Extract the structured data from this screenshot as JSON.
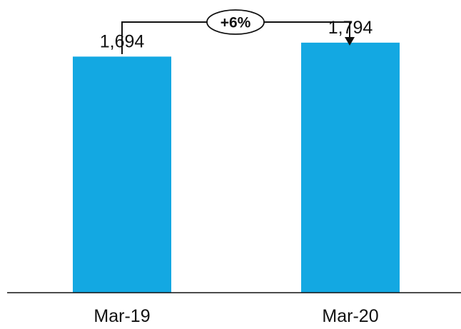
{
  "chart_data": {
    "type": "bar",
    "categories": [
      "Mar-19",
      "Mar-20"
    ],
    "values": [
      1694,
      1794
    ],
    "value_labels": [
      "1,694",
      "1,794"
    ],
    "ylim": [
      0,
      2100
    ],
    "grid": false,
    "bar_color": "#13A8E2",
    "annotation": {
      "label": "+6%",
      "from": "Mar-19",
      "to": "Mar-20"
    }
  }
}
